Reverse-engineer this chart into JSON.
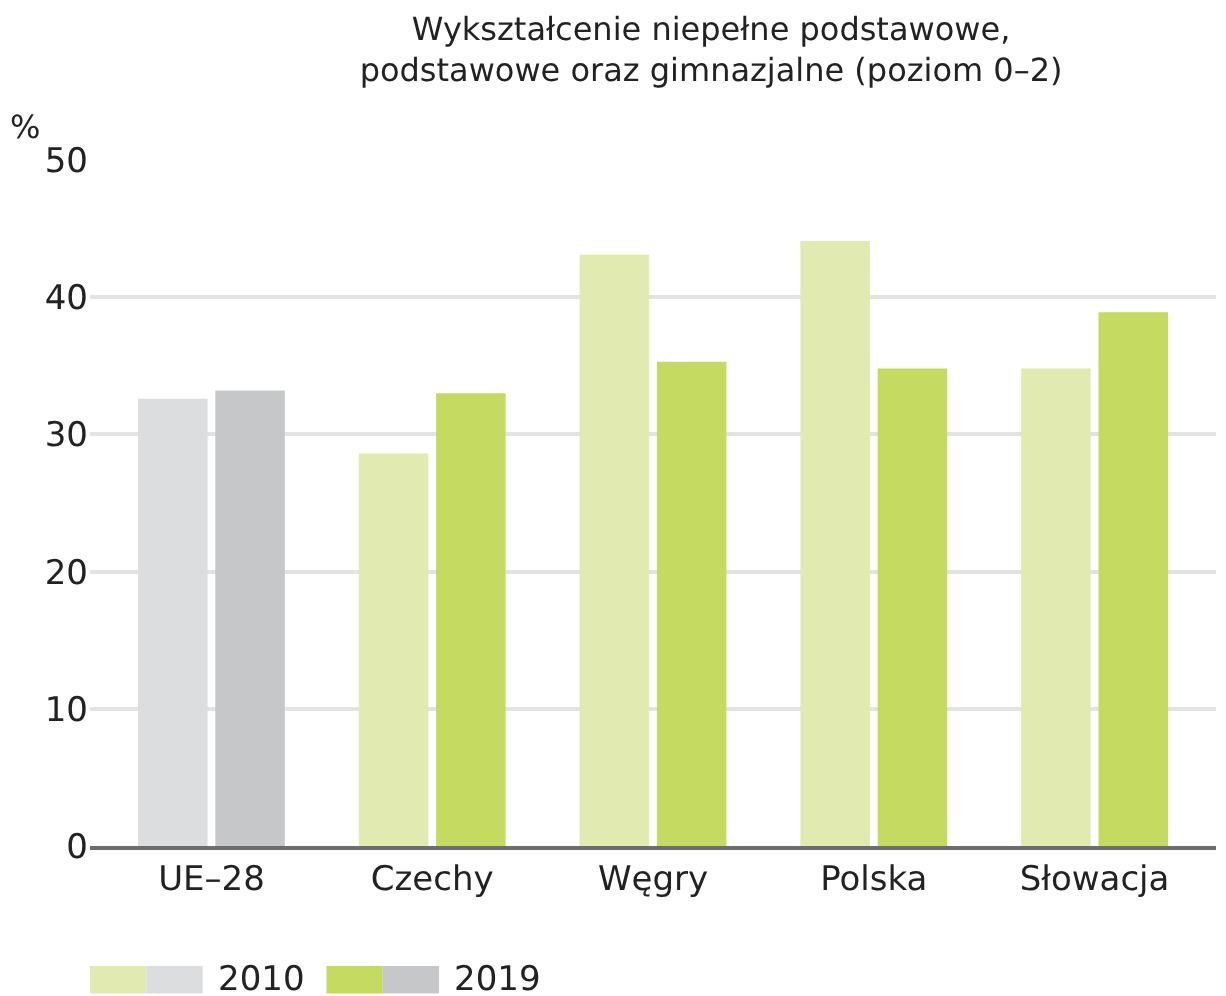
{
  "chart_data": {
    "type": "bar",
    "title": "Wykształcenie niepełne podstawowe,\npodstawowe oraz gimnazjalne (poziom 0–2)",
    "ylabel": "%",
    "categories": [
      "UE–28",
      "Czechy",
      "Węgry",
      "Polska",
      "Słowacja"
    ],
    "series": [
      {
        "name": "2010",
        "color": "#e1eab0",
        "colors": [
          "#dcdddf",
          "#e1eab0",
          "#e1eab0",
          "#e1eab0",
          "#e1eab0"
        ],
        "values": [
          32.6,
          28.6,
          43.1,
          44.1,
          34.8
        ]
      },
      {
        "name": "2019",
        "color": "#c5da60",
        "colors": [
          "#c6c7c9",
          "#c5da60",
          "#c5da60",
          "#c5da60",
          "#c5da60"
        ],
        "values": [
          33.2,
          33.0,
          35.3,
          34.8,
          38.9
        ]
      }
    ],
    "ylim": [
      0,
      50
    ],
    "yticks": [
      0,
      10,
      20,
      30,
      40,
      50
    ],
    "grid": "y",
    "legend": "bottom left"
  }
}
